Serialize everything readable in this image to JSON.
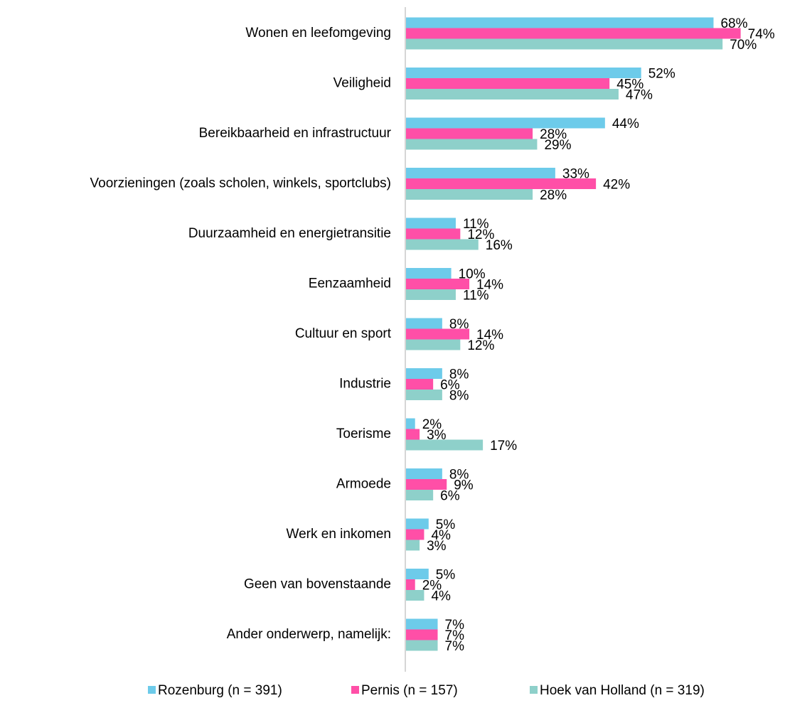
{
  "chart_data": {
    "type": "bar",
    "orientation": "horizontal",
    "categories": [
      "Wonen en leefomgeving",
      "Veiligheid",
      "Bereikbaarheid en infrastructuur",
      "Voorzieningen (zoals scholen, winkels, sportclubs)",
      "Duurzaamheid en energietransitie",
      "Eenzaamheid",
      "Cultuur en sport",
      "Industrie",
      "Toerisme",
      "Armoede",
      "Werk en inkomen",
      "Geen van bovenstaande",
      "Ander onderwerp, namelijk:"
    ],
    "series": [
      {
        "name": "Rozenburg (n = 391)",
        "color": "#6dcbea",
        "values": [
          68,
          52,
          44,
          33,
          11,
          10,
          8,
          8,
          2,
          8,
          5,
          5,
          7
        ],
        "value_labels": [
          "68%",
          "52%",
          "44%",
          "33%",
          "11%",
          "10%",
          "8%",
          "8%",
          "2%",
          "8%",
          "5%",
          "5%",
          "7%"
        ]
      },
      {
        "name": "Pernis (n = 157)",
        "color": "#ff4fa7",
        "values": [
          74,
          45,
          28,
          42,
          12,
          14,
          14,
          6,
          3,
          9,
          4,
          2,
          7
        ],
        "value_labels": [
          "74%",
          "45%",
          "28%",
          "42%",
          "12%",
          "14%",
          "14%",
          "6%",
          "3%",
          "9%",
          "4%",
          "2%",
          "7%"
        ]
      },
      {
        "name": "Hoek van Holland (n = 319)",
        "color": "#8ed0ca",
        "values": [
          70,
          47,
          29,
          28,
          16,
          11,
          12,
          8,
          17,
          6,
          3,
          4,
          7
        ],
        "value_labels": [
          "70%",
          "47%",
          "29%",
          "28%",
          "16%",
          "11%",
          "12%",
          "8%",
          "17%",
          "6%",
          "3%",
          "4%",
          "7%"
        ]
      }
    ],
    "legend": "bottom"
  }
}
